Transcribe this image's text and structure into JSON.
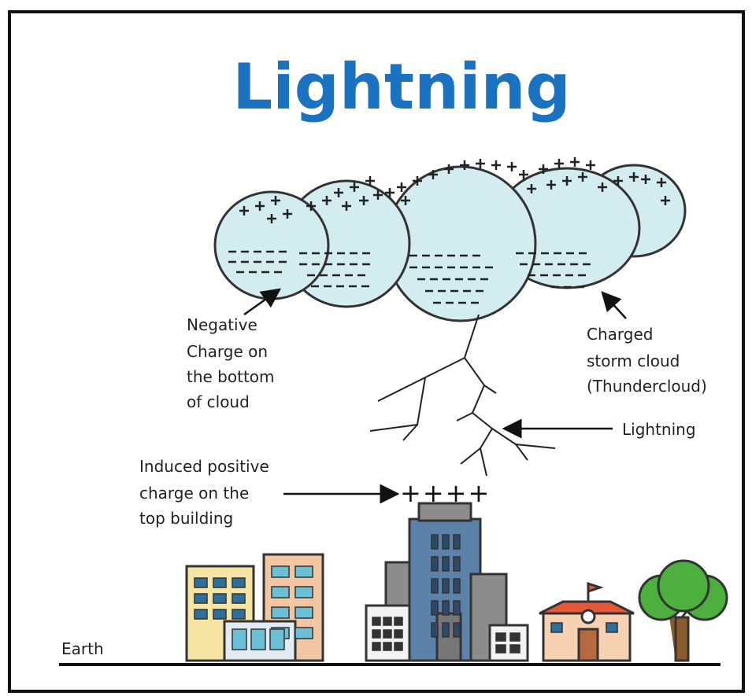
{
  "title": "Lightning",
  "annotations": {
    "cloud_bottom": [
      "Negative",
      "Charge on",
      "the bottom",
      "of cloud"
    ],
    "storm_cloud": [
      "Charged",
      "storm cloud",
      "(Thundercloud)"
    ],
    "bolt": [
      "Lightning"
    ],
    "induced": [
      "Induced positive",
      "charge on the",
      "top building"
    ]
  },
  "building_charge": "++++",
  "ground_label": "Earth"
}
